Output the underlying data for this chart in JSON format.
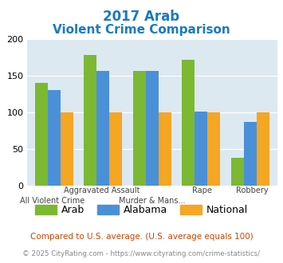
{
  "title_line1": "2017 Arab",
  "title_line2": "Violent Crime Comparison",
  "arab": [
    140,
    179,
    157,
    172,
    38
  ],
  "alabama": [
    131,
    157,
    157,
    101,
    87
  ],
  "national": [
    100,
    100,
    100,
    100,
    100
  ],
  "arab_color": "#7cb832",
  "alabama_color": "#4a90d9",
  "national_color": "#f5a623",
  "ylim": [
    0,
    200
  ],
  "yticks": [
    0,
    50,
    100,
    150,
    200
  ],
  "bg_color": "#dce9f0",
  "title_color": "#1a7abf",
  "footnote1_color": "#cc4400",
  "footnote2_color": "#888888",
  "url_color": "#4a90d9",
  "legend_labels": [
    "Arab",
    "Alabama",
    "National"
  ],
  "footnote1": "Compared to U.S. average. (U.S. average equals 100)",
  "footnote2_pre": "© 2025 CityRating.com - ",
  "footnote2_url": "https://www.cityrating.com/crime-statistics/",
  "xtick_top": [
    "Aggravated",
    "Assault",
    "Rape",
    "Robbery"
  ],
  "xtick_bot": [
    "All Violent Crime",
    "Murder & Mans...",
    "",
    ""
  ]
}
